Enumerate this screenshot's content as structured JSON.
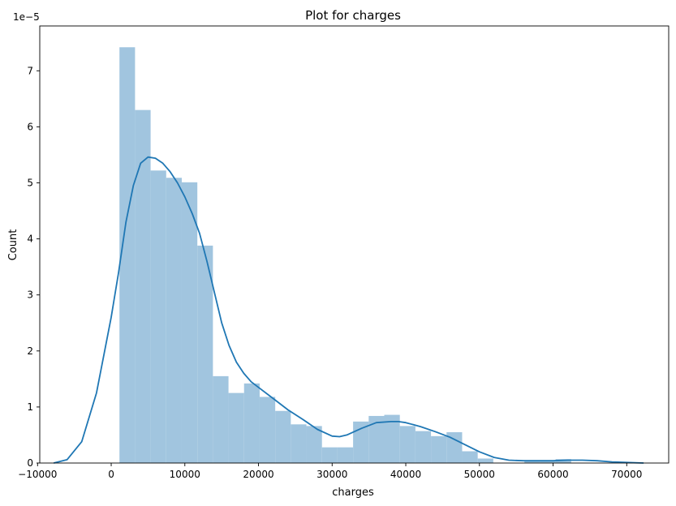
{
  "chart_data": {
    "type": "bar",
    "title": "Plot for charges",
    "xlabel": "charges",
    "ylabel": "Count",
    "y_offset_label": "1e−5",
    "y_scale": 1e-05,
    "xlim": [
      -9700,
      75700
    ],
    "ylim": [
      0,
      7.8
    ],
    "x_ticks": [
      -10000,
      0,
      10000,
      20000,
      30000,
      40000,
      50000,
      60000,
      70000
    ],
    "x_tick_labels": [
      "−10000",
      "0",
      "10000",
      "20000",
      "30000",
      "40000",
      "50000",
      "60000",
      "70000"
    ],
    "y_ticks": [
      0,
      1,
      2,
      3,
      4,
      5,
      6,
      7
    ],
    "y_tick_labels": [
      "0",
      "1",
      "2",
      "3",
      "4",
      "5",
      "6",
      "7"
    ],
    "grid": false,
    "bar_color": "#a1c5df",
    "line_color": "#1f77b4",
    "histogram": {
      "bin_start": 1122,
      "bin_width": 2115,
      "values": [
        7.42,
        6.3,
        5.22,
        5.09,
        5.01,
        3.88,
        1.55,
        1.25,
        1.42,
        1.18,
        0.93,
        0.69,
        0.66,
        0.28,
        0.28,
        0.74,
        0.84,
        0.86,
        0.66,
        0.57,
        0.48,
        0.55,
        0.21,
        0.08,
        0.0,
        0.0,
        0.04,
        0.04,
        0.07
      ]
    },
    "kde": {
      "x": [
        -7800,
        -6000,
        -4000,
        -2000,
        0,
        1000,
        2000,
        3000,
        4000,
        5000,
        6000,
        7000,
        8000,
        9000,
        10000,
        11000,
        12000,
        13000,
        14000,
        15000,
        16000,
        17000,
        18000,
        19000,
        20000,
        22000,
        24000,
        26000,
        28000,
        30000,
        31000,
        32000,
        34000,
        36000,
        38000,
        39000,
        40000,
        42000,
        44000,
        46000,
        48000,
        50000,
        52000,
        54000,
        56000,
        58000,
        60000,
        62000,
        64000,
        66000,
        68000,
        70000,
        72300
      ],
      "y": [
        0.0,
        0.06,
        0.38,
        1.25,
        2.6,
        3.4,
        4.3,
        4.95,
        5.35,
        5.46,
        5.44,
        5.35,
        5.2,
        5.0,
        4.75,
        4.45,
        4.1,
        3.6,
        3.05,
        2.5,
        2.1,
        1.8,
        1.6,
        1.45,
        1.35,
        1.15,
        0.95,
        0.78,
        0.6,
        0.48,
        0.47,
        0.5,
        0.62,
        0.72,
        0.74,
        0.74,
        0.72,
        0.65,
        0.56,
        0.46,
        0.33,
        0.2,
        0.1,
        0.05,
        0.04,
        0.04,
        0.04,
        0.05,
        0.05,
        0.04,
        0.02,
        0.01,
        0.0
      ]
    }
  }
}
